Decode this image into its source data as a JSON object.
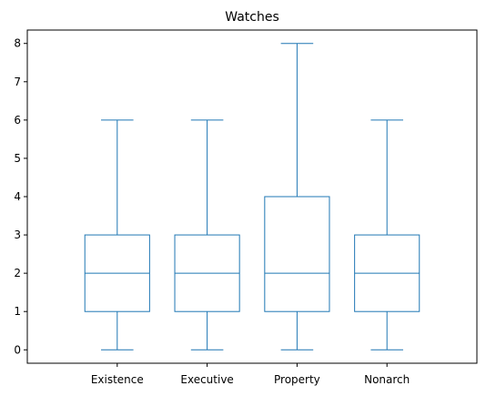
{
  "chart_data": {
    "type": "box",
    "title": "Watches",
    "xlabel": "",
    "ylabel": "",
    "ylim": [
      -0.35,
      8.35
    ],
    "yticks": [
      0,
      1,
      2,
      3,
      4,
      5,
      6,
      7,
      8
    ],
    "categories": [
      "Existence",
      "Executive",
      "Property",
      "Nonarch"
    ],
    "boxes": [
      {
        "label": "Existence",
        "whisker_low": 0,
        "q1": 1,
        "median": 2,
        "q3": 3,
        "whisker_high": 6
      },
      {
        "label": "Executive",
        "whisker_low": 0,
        "q1": 1,
        "median": 2,
        "q3": 3,
        "whisker_high": 6
      },
      {
        "label": "Property",
        "whisker_low": 0,
        "q1": 1,
        "median": 2,
        "q3": 4,
        "whisker_high": 8
      },
      {
        "label": "Nonarch",
        "whisker_low": 0,
        "q1": 1,
        "median": 2,
        "q3": 3,
        "whisker_high": 6
      }
    ],
    "grid": false,
    "color": "#1f77b4"
  }
}
